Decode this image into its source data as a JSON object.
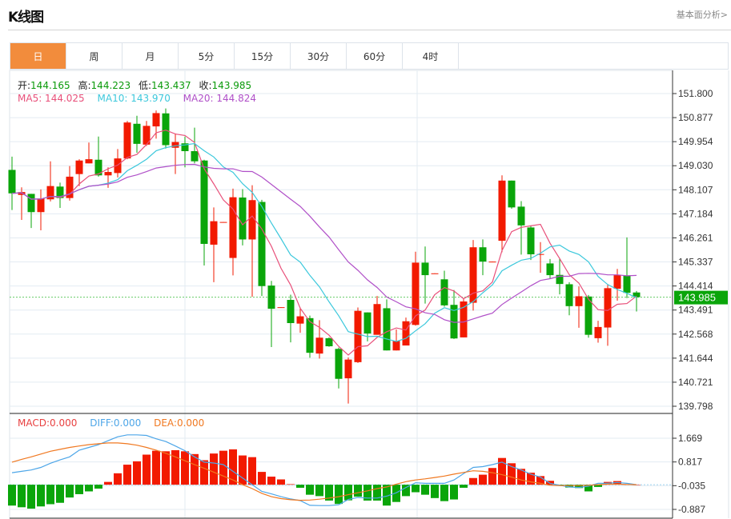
{
  "header": {
    "title": "K线图",
    "link": "基本面分析>"
  },
  "tabs": [
    {
      "label": "日",
      "active": true
    },
    {
      "label": "周"
    },
    {
      "label": "月"
    },
    {
      "label": "5分"
    },
    {
      "label": "15分"
    },
    {
      "label": "30分"
    },
    {
      "label": "60分"
    },
    {
      "label": "4时"
    }
  ],
  "ohlc_legend": {
    "open_label": "开:",
    "open": "144.165",
    "high_label": "高:",
    "high": "144.223",
    "low_label": "低:",
    "low": "143.437",
    "close_label": "收:",
    "close": "143.985"
  },
  "ma_legend": {
    "ma5": "MA5: 144.025",
    "ma10": "MA10: 143.970",
    "ma20": "MA20: 144.824"
  },
  "macd_legend": {
    "macd": "MACD:0.000",
    "diff": "DIFF:0.000",
    "dea": "DEA:0.000"
  },
  "current_price": "143.985",
  "colors": {
    "up": "#F21A00",
    "down": "#0AA50A",
    "ma5": "#E8507A",
    "ma10": "#3CC8DC",
    "ma20": "#B050C8",
    "diff": "#4DA6E8",
    "dea": "#F07820",
    "accent": "#F28C3C"
  },
  "chart_data": [
    {
      "type": "candlestick",
      "title": "K线图",
      "y_ticks": [
        "151.800",
        "150.877",
        "149.954",
        "149.030",
        "148.107",
        "147.184",
        "146.261",
        "145.337",
        "144.414",
        "143.491",
        "142.568",
        "141.644",
        "140.721",
        "139.798"
      ],
      "ylim": [
        139.798,
        151.8
      ],
      "ohlc": [
        [
          148.87,
          149.38,
          147.33,
          147.97
        ],
        [
          147.91,
          148.2,
          146.95,
          148.02
        ],
        [
          147.95,
          147.95,
          146.64,
          147.25
        ],
        [
          147.25,
          148.12,
          146.55,
          147.77
        ],
        [
          147.74,
          149.2,
          147.66,
          148.25
        ],
        [
          148.23,
          148.38,
          147.41,
          147.79
        ],
        [
          147.79,
          149.02,
          147.69,
          148.61
        ],
        [
          148.71,
          149.28,
          148.25,
          149.23
        ],
        [
          149.12,
          149.92,
          149.12,
          149.28
        ],
        [
          149.26,
          150.15,
          148.61,
          148.66
        ],
        [
          148.66,
          148.97,
          148.18,
          148.79
        ],
        [
          148.75,
          149.67,
          148.58,
          149.31
        ],
        [
          149.31,
          150.75,
          149.28,
          150.69
        ],
        [
          150.64,
          150.95,
          149.53,
          149.87
        ],
        [
          149.84,
          150.75,
          149.79,
          150.56
        ],
        [
          150.54,
          151.15,
          150.07,
          151.05
        ],
        [
          151.04,
          151.23,
          149.69,
          149.82
        ],
        [
          149.72,
          150.27,
          148.71,
          149.94
        ],
        [
          149.89,
          150.15,
          148.97,
          149.59
        ],
        [
          149.59,
          150.49,
          149.12,
          149.2
        ],
        [
          149.23,
          149.26,
          145.2,
          146.03
        ],
        [
          146.0,
          147.43,
          144.56,
          146.9
        ],
        [
          146.85,
          146.87,
          146.85,
          146.87
        ],
        [
          145.49,
          148.15,
          144.82,
          147.82
        ],
        [
          147.81,
          148.13,
          145.97,
          146.2
        ],
        [
          146.2,
          148.28,
          144.0,
          147.71
        ],
        [
          147.64,
          147.72,
          144.03,
          144.41
        ],
        [
          144.43,
          144.61,
          142.07,
          143.54
        ],
        [
          143.58,
          143.6,
          143.58,
          143.6
        ],
        [
          143.88,
          144.08,
          142.25,
          142.99
        ],
        [
          142.97,
          143.59,
          142.62,
          143.25
        ],
        [
          143.18,
          143.28,
          141.66,
          141.85
        ],
        [
          141.82,
          143.1,
          141.63,
          142.43
        ],
        [
          142.41,
          142.44,
          142.08,
          142.1
        ],
        [
          142.0,
          142.05,
          140.48,
          140.85
        ],
        [
          140.87,
          141.67,
          139.9,
          141.59
        ],
        [
          141.49,
          143.59,
          141.46,
          143.46
        ],
        [
          143.4,
          143.4,
          142.29,
          142.59
        ],
        [
          142.54,
          144.03,
          142.54,
          143.72
        ],
        [
          143.56,
          143.9,
          141.94,
          141.94
        ],
        [
          141.94,
          142.75,
          141.94,
          142.31
        ],
        [
          142.13,
          143.2,
          142.13,
          143.06
        ],
        [
          142.92,
          145.73,
          142.89,
          145.31
        ],
        [
          145.31,
          145.93,
          143.74,
          144.83
        ],
        [
          144.88,
          144.9,
          144.88,
          144.9
        ],
        [
          144.67,
          145.0,
          143.62,
          143.67
        ],
        [
          143.69,
          144.26,
          142.38,
          142.4
        ],
        [
          142.44,
          143.95,
          142.44,
          143.82
        ],
        [
          143.77,
          146.18,
          143.47,
          145.9
        ],
        [
          145.9,
          146.2,
          144.83,
          145.35
        ],
        [
          145.33,
          145.35,
          145.33,
          145.35
        ],
        [
          146.15,
          148.66,
          145.71,
          148.46
        ],
        [
          148.46,
          148.46,
          147.38,
          147.43
        ],
        [
          147.46,
          147.67,
          145.62,
          146.74
        ],
        [
          146.66,
          146.74,
          145.41,
          145.63
        ],
        [
          145.62,
          146.1,
          144.92,
          145.64
        ],
        [
          145.28,
          145.45,
          144.69,
          144.83
        ],
        [
          144.84,
          145.49,
          144.09,
          144.49
        ],
        [
          144.48,
          144.56,
          143.29,
          143.64
        ],
        [
          143.64,
          144.4,
          142.81,
          144.02
        ],
        [
          144.01,
          144.07,
          142.43,
          142.54
        ],
        [
          142.41,
          143.08,
          142.24,
          142.84
        ],
        [
          142.82,
          144.46,
          142.12,
          144.33
        ],
        [
          144.31,
          145.07,
          143.85,
          144.83
        ],
        [
          144.82,
          146.28,
          143.95,
          144.15
        ],
        [
          144.165,
          144.223,
          143.437,
          143.985
        ]
      ],
      "ma_periods": [
        5,
        10,
        20
      ]
    },
    {
      "type": "bar+line",
      "title": "MACD",
      "y_ticks": [
        "1.669",
        "0.817",
        "-0.035",
        "-0.887"
      ],
      "ylim": [
        -0.95,
        1.9
      ],
      "macd": [
        -0.75,
        -0.81,
        -0.86,
        -0.78,
        -0.7,
        -0.65,
        -0.46,
        -0.34,
        -0.24,
        -0.14,
        0.1,
        0.41,
        0.72,
        0.84,
        1.08,
        1.22,
        1.2,
        1.24,
        1.2,
        1.1,
        0.88,
        1.12,
        1.22,
        1.27,
        1.05,
        0.99,
        0.46,
        0.29,
        0.19,
        0.02,
        -0.11,
        -0.36,
        -0.41,
        -0.57,
        -0.69,
        -0.56,
        -0.43,
        -0.57,
        -0.57,
        -0.75,
        -0.62,
        -0.41,
        -0.27,
        -0.36,
        -0.48,
        -0.59,
        -0.53,
        -0.11,
        0.24,
        0.36,
        0.6,
        0.96,
        0.77,
        0.57,
        0.43,
        0.31,
        0.14,
        -0.01,
        -0.1,
        -0.12,
        -0.24,
        -0.08,
        0.1,
        0.13,
        0.01,
        0.0
      ],
      "diff": [
        0.43,
        0.48,
        0.53,
        0.62,
        0.77,
        0.89,
        1.0,
        1.24,
        1.34,
        1.44,
        1.58,
        1.72,
        1.79,
        1.79,
        1.77,
        1.65,
        1.55,
        1.39,
        1.22,
        1.0,
        0.81,
        0.78,
        0.72,
        0.48,
        0.24,
        0,
        -0.24,
        -0.33,
        -0.43,
        -0.51,
        -0.57,
        -0.74,
        -0.75,
        -0.75,
        -0.72,
        -0.53,
        -0.46,
        -0.48,
        -0.48,
        -0.41,
        -0.29,
        -0.1,
        0.07,
        0.05,
        0.05,
        0.05,
        0.17,
        0.4,
        0.62,
        0.65,
        0.72,
        0.81,
        0.65,
        0.53,
        0.38,
        0.27,
        0.05,
        -0.02,
        -0.08,
        -0.1,
        -0.05,
        0.05,
        0.05,
        0.08,
        0.05,
        0
      ],
      "dea": [
        0.81,
        0.91,
        1.0,
        1.1,
        1.2,
        1.27,
        1.34,
        1.39,
        1.44,
        1.47,
        1.5,
        1.5,
        1.47,
        1.42,
        1.34,
        1.24,
        1.13,
        1.0,
        0.86,
        0.72,
        0.59,
        0.45,
        0.31,
        0.17,
        0,
        -0.14,
        -0.31,
        -0.43,
        -0.5,
        -0.54,
        -0.56,
        -0.55,
        -0.52,
        -0.48,
        -0.43,
        -0.36,
        -0.29,
        -0.22,
        -0.14,
        -0.08,
        0.02,
        0.11,
        0.17,
        0.21,
        0.26,
        0.31,
        0.38,
        0.44,
        0.5,
        0.48,
        0.43,
        0.36,
        0.27,
        0.17,
        0.1,
        0.05,
        -0.02,
        -0.03,
        -0.03,
        -0.03,
        -0.02,
        0,
        0.02,
        0.02,
        0.01,
        0
      ]
    }
  ]
}
